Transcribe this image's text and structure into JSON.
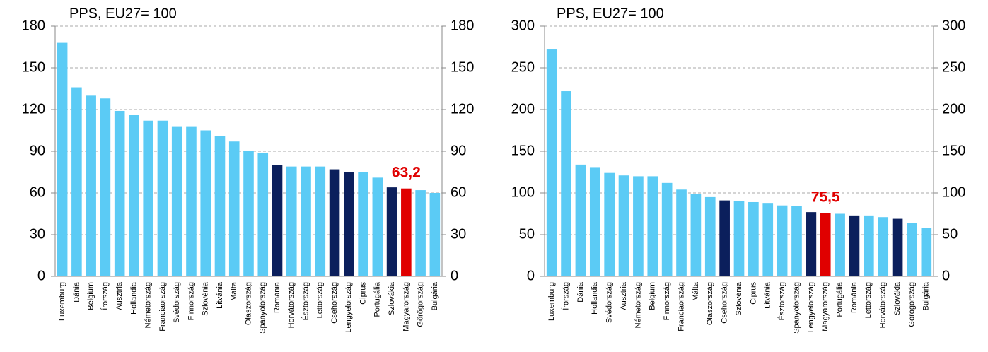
{
  "chart_data": [
    {
      "type": "bar",
      "title": "PPS, EU27= 100",
      "categories": [
        "Luxemburg",
        "Dánia",
        "Belgium",
        "Írország",
        "Ausztria",
        "Hollandia",
        "Németország",
        "Franciaország",
        "Svédország",
        "Finnország",
        "Szlovénia",
        "Litvánia",
        "Málta",
        "Olaszország",
        "Spanyolország",
        "Románia",
        "Horvátország",
        "Észtország",
        "Lettország",
        "Csehország",
        "Lengyelország",
        "Ciprus",
        "Portugália",
        "Szlovákia",
        "Magyarország",
        "Görögország",
        "Bulgária"
      ],
      "values": [
        168,
        136,
        130,
        128,
        119,
        116,
        112,
        112,
        108,
        108,
        105,
        101,
        97,
        90,
        89,
        80,
        79,
        79,
        79,
        77,
        75,
        75,
        71,
        64,
        63.2,
        62,
        60
      ],
      "value_labels": [
        null,
        null,
        null,
        null,
        null,
        null,
        null,
        null,
        null,
        null,
        null,
        null,
        null,
        null,
        null,
        null,
        null,
        null,
        null,
        null,
        null,
        null,
        null,
        null,
        "63,2",
        null,
        null
      ],
      "colors": [
        "#5bcbf5",
        "#5bcbf5",
        "#5bcbf5",
        "#5bcbf5",
        "#5bcbf5",
        "#5bcbf5",
        "#5bcbf5",
        "#5bcbf5",
        "#5bcbf5",
        "#5bcbf5",
        "#5bcbf5",
        "#5bcbf5",
        "#5bcbf5",
        "#5bcbf5",
        "#5bcbf5",
        "#0b1f5c",
        "#5bcbf5",
        "#5bcbf5",
        "#5bcbf5",
        "#0b1f5c",
        "#0b1f5c",
        "#5bcbf5",
        "#5bcbf5",
        "#0b1f5c",
        "#e00000",
        "#5bcbf5",
        "#5bcbf5"
      ],
      "ylim": [
        0,
        180
      ],
      "yticks": [
        0,
        30,
        60,
        90,
        120,
        150,
        180
      ],
      "y2lim": [
        0,
        180
      ],
      "y2ticks": [
        0,
        30,
        60,
        90,
        120,
        150,
        180
      ],
      "grid": true
    },
    {
      "type": "bar",
      "title": "PPS, EU27= 100",
      "categories": [
        "Luxemburg",
        "Írország",
        "Dánia",
        "Hollandia",
        "Svédország",
        "Ausztria",
        "Németország",
        "Belgium",
        "Finnország",
        "Franciaország",
        "Málta",
        "Olaszország",
        "Csehország",
        "Szlovénia",
        "Ciprus",
        "Litvánia",
        "Észtország",
        "Spanyolország",
        "Lengyelország",
        "Magyarország",
        "Portugália",
        "Románia",
        "Lettország",
        "Horvátország",
        "Szlovákia",
        "Görögország",
        "Bulgária"
      ],
      "values": [
        272,
        222,
        134,
        131,
        124,
        121,
        120,
        120,
        112,
        104,
        99,
        95,
        91,
        90,
        89,
        88,
        85,
        84,
        77,
        75.5,
        75,
        73,
        73,
        71,
        69,
        64,
        58
      ],
      "value_labels": [
        null,
        null,
        null,
        null,
        null,
        null,
        null,
        null,
        null,
        null,
        null,
        null,
        null,
        null,
        null,
        null,
        null,
        null,
        null,
        "75,5",
        null,
        null,
        null,
        null,
        null,
        null,
        null
      ],
      "colors": [
        "#5bcbf5",
        "#5bcbf5",
        "#5bcbf5",
        "#5bcbf5",
        "#5bcbf5",
        "#5bcbf5",
        "#5bcbf5",
        "#5bcbf5",
        "#5bcbf5",
        "#5bcbf5",
        "#5bcbf5",
        "#5bcbf5",
        "#0b1f5c",
        "#5bcbf5",
        "#5bcbf5",
        "#5bcbf5",
        "#5bcbf5",
        "#5bcbf5",
        "#0b1f5c",
        "#e00000",
        "#5bcbf5",
        "#0b1f5c",
        "#5bcbf5",
        "#5bcbf5",
        "#0b1f5c",
        "#5bcbf5",
        "#5bcbf5"
      ],
      "ylim": [
        0,
        300
      ],
      "yticks": [
        0,
        50,
        100,
        150,
        200,
        250,
        300
      ],
      "y2lim": [
        0,
        300
      ],
      "y2ticks": [
        0,
        50,
        100,
        150,
        200,
        250,
        300
      ],
      "grid": true
    }
  ]
}
